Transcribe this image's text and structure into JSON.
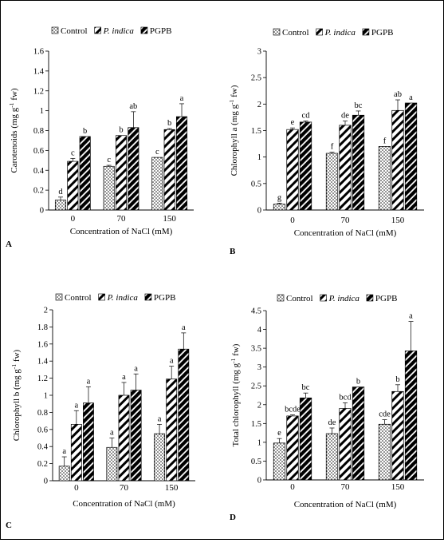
{
  "figure": {
    "x_axis_label": "Concentration of NaCl (mM)",
    "categories": [
      "0",
      "70",
      "150"
    ],
    "legend": [
      {
        "label": "Control",
        "italic": false,
        "pattern": "dots"
      },
      {
        "label": "P. indica",
        "italic": true,
        "pattern": "diag"
      },
      {
        "label": "PGPB",
        "italic": false,
        "pattern": "bold"
      }
    ]
  },
  "chart_data": [
    {
      "panel": "A",
      "type": "bar",
      "ylabel_main": "Carotenoids (mg g",
      "ylabel_sup": "-1",
      "ylabel_tail": " fw)",
      "ylim": [
        0,
        1.6
      ],
      "yticks": [
        "0",
        "0.2",
        "0.4",
        "0.6",
        "0.8",
        "1",
        "1.2",
        "1.4",
        "1.6"
      ],
      "xlabel": "Concentration of NaCl (mM)",
      "categories": [
        "0",
        "70",
        "150"
      ],
      "series": [
        {
          "name": "Control",
          "values": [
            0.1,
            0.44,
            0.53
          ],
          "errors": [
            0.03,
            0.01,
            0.0
          ],
          "letters": [
            "d",
            "c",
            "c"
          ]
        },
        {
          "name": "P. indica",
          "values": [
            0.49,
            0.75,
            0.81
          ],
          "errors": [
            0.03,
            0.0,
            0.01
          ],
          "letters": [
            "c",
            "b",
            "b"
          ]
        },
        {
          "name": "PGPB",
          "values": [
            0.74,
            0.83,
            0.94
          ],
          "errors": [
            0.0,
            0.16,
            0.13
          ],
          "letters": [
            "b",
            "ab",
            "a"
          ]
        }
      ]
    },
    {
      "panel": "B",
      "type": "bar",
      "ylabel_main": "Chlorophyll a (mg g",
      "ylabel_sup": "-1",
      "ylabel_tail": " fw)",
      "ylim": [
        0,
        3
      ],
      "yticks": [
        "0",
        "0.5",
        "1",
        "1.5",
        "2",
        "2.5",
        "3"
      ],
      "xlabel": "Concentration of NaCl (mM)",
      "categories": [
        "0",
        "70",
        "150"
      ],
      "series": [
        {
          "name": "Control",
          "values": [
            0.11,
            1.07,
            1.2
          ],
          "errors": [
            0.02,
            0.02,
            0.0
          ],
          "letters": [
            "g",
            "f",
            "f"
          ]
        },
        {
          "name": "P. indica",
          "values": [
            1.52,
            1.6,
            1.88
          ],
          "errors": [
            0.03,
            0.08,
            0.2
          ],
          "letters": [
            "e",
            "de",
            "ab"
          ]
        },
        {
          "name": "PGPB",
          "values": [
            1.66,
            1.79,
            2.02
          ],
          "errors": [
            0.02,
            0.08,
            0.0
          ],
          "letters": [
            "cd",
            "bc",
            "a"
          ]
        }
      ]
    },
    {
      "panel": "C",
      "type": "bar",
      "ylabel_main": "Chlorophyll b (mg g",
      "ylabel_sup": "-1",
      "ylabel_tail": " fw)",
      "ylim": [
        0,
        2
      ],
      "yticks": [
        "0",
        "0.2",
        "0.4",
        "0.6",
        "0.8",
        "1",
        "1.2",
        "1.4",
        "1.6",
        "1.8",
        "2"
      ],
      "xlabel": "Concentration of NaCl (mM)",
      "categories": [
        "0",
        "70",
        "150"
      ],
      "series": [
        {
          "name": "Control",
          "values": [
            0.17,
            0.39,
            0.55
          ],
          "errors": [
            0.11,
            0.11,
            0.11
          ],
          "letters": [
            "a",
            "a",
            "a"
          ]
        },
        {
          "name": "P. indica",
          "values": [
            0.66,
            1.0,
            1.19
          ],
          "errors": [
            0.16,
            0.15,
            0.15
          ],
          "letters": [
            "a",
            "a",
            "a"
          ]
        },
        {
          "name": "PGPB",
          "values": [
            0.91,
            1.06,
            1.54
          ],
          "errors": [
            0.19,
            0.19,
            0.19
          ],
          "letters": [
            "a",
            "a",
            "a"
          ]
        }
      ]
    },
    {
      "panel": "D",
      "type": "bar",
      "ylabel_main": "Total chlorophyll (mg g",
      "ylabel_sup": "-1",
      "ylabel_tail": " fw)",
      "ylim": [
        0,
        4.5
      ],
      "yticks": [
        "0",
        "0.5",
        "1",
        "1.5",
        "2",
        "2.5",
        "3",
        "3.5",
        "4",
        "4.5"
      ],
      "xlabel": "Concentration of NaCl (mM)",
      "categories": [
        "0",
        "70",
        "150"
      ],
      "series": [
        {
          "name": "Control",
          "values": [
            0.98,
            1.23,
            1.48
          ],
          "errors": [
            0.12,
            0.15,
            0.12
          ],
          "letters": [
            "e",
            "de",
            "cde"
          ]
        },
        {
          "name": "P. indica",
          "values": [
            1.7,
            1.9,
            2.35
          ],
          "errors": [
            0.03,
            0.15,
            0.18
          ],
          "letters": [
            "bcde",
            "bcd",
            "b"
          ]
        },
        {
          "name": "PGPB",
          "values": [
            2.18,
            2.47,
            3.43
          ],
          "errors": [
            0.13,
            0.0,
            0.78
          ],
          "letters": [
            "bc",
            "b",
            "a"
          ]
        }
      ]
    }
  ]
}
